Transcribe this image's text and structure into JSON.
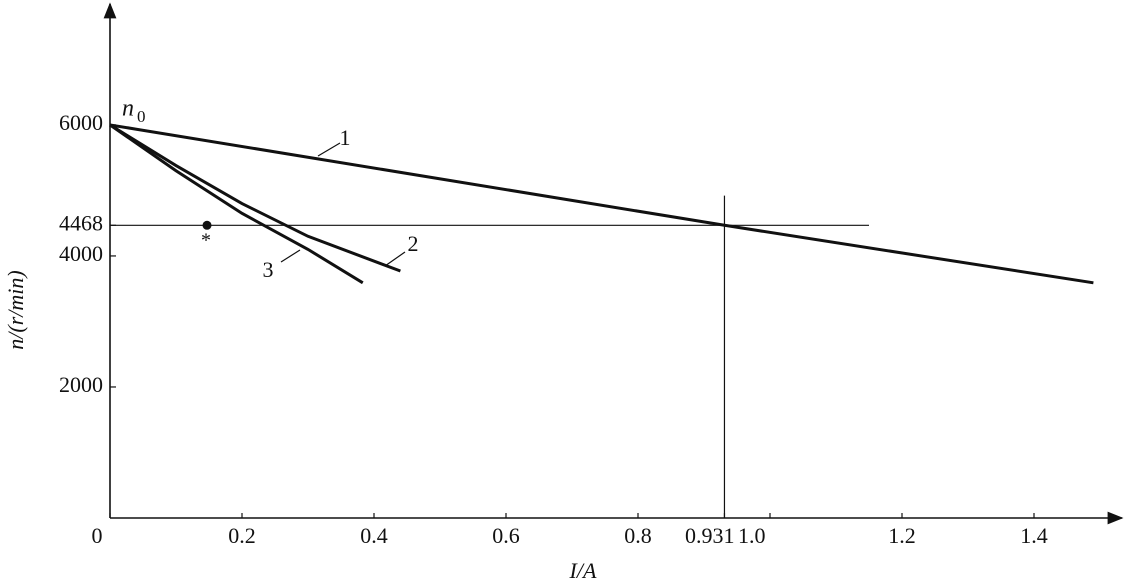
{
  "chart_data": {
    "type": "line",
    "x_label": "I/A",
    "y_label": "n/(r/min)",
    "xlim": [
      0,
      1.53
    ],
    "ylim": [
      0,
      7800
    ],
    "xticks": [
      0,
      0.2,
      0.4,
      0.6,
      0.8,
      0.931,
      {
        "value": 1,
        "label": "1.0"
      },
      1.2,
      1.4
    ],
    "yticks": [
      2000,
      4000,
      4468,
      6000
    ],
    "series": [
      {
        "name": "1",
        "color": "#111111",
        "x": [
          0,
          0.931,
          1.49
        ],
        "values": [
          6000,
          4468,
          3590
        ]
      },
      {
        "name": "2",
        "color": "#111111",
        "x": [
          0,
          0.1,
          0.2,
          0.3,
          0.44
        ],
        "values": [
          6000,
          5380,
          4800,
          4300,
          3770
        ]
      },
      {
        "name": "3",
        "color": "#111111",
        "x": [
          0,
          0.1,
          0.2,
          0.3,
          0.383
        ],
        "values": [
          6000,
          5300,
          4650,
          4100,
          3590
        ]
      }
    ],
    "guides": [
      {
        "x": [
          0,
          1.15
        ],
        "y": [
          4468,
          4468
        ]
      },
      {
        "x": [
          0.931,
          0.931
        ],
        "y": [
          0,
          4920
        ]
      }
    ],
    "points": [
      {
        "x": 0.147,
        "y": 4468
      }
    ],
    "annotations": [
      "n",
      "0",
      "*"
    ]
  }
}
